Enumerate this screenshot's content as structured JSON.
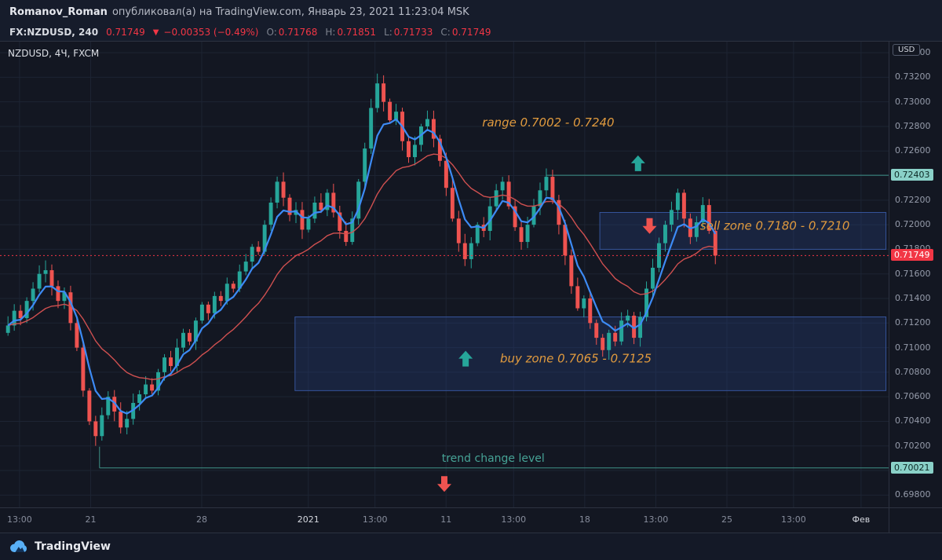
{
  "header": {
    "author": "Romanov_Roman",
    "published": "опубликовал(а) на TradingView.com, Январь 23, 2021 11:23:04 MSK"
  },
  "symbol_bar": {
    "symbol": "FX:NZDUSD, 240",
    "last": "0.71749",
    "direction": "▼",
    "change": "−0.00353 (−0.49%)",
    "open_label": "O:",
    "open": "0.71768",
    "high_label": "H:",
    "high": "0.71851",
    "low_label": "L:",
    "low": "0.71733",
    "close_label": "C:",
    "close": "0.71749"
  },
  "chart": {
    "legend": "NZDUSD, 4Ч, FXCM",
    "currency": "USD"
  },
  "chart_data": {
    "type": "candlestick",
    "title": "NZDUSD 4H FXCM",
    "ylim": [
      0.697,
      0.7349
    ],
    "grid_min": 0.698,
    "grid_max": 0.734,
    "grid_step": 0.002,
    "candles_x_start": 0.009,
    "candles_x_end": 0.805,
    "first_open": 0.7112,
    "closes": [
      0.7118,
      0.713,
      0.7124,
      0.7138,
      0.7148,
      0.716,
      0.7163,
      0.715,
      0.7138,
      0.7145,
      0.712,
      0.71,
      0.7065,
      0.704,
      0.7028,
      0.7045,
      0.706,
      0.7048,
      0.7035,
      0.7042,
      0.7055,
      0.7062,
      0.707,
      0.7065,
      0.708,
      0.7092,
      0.7085,
      0.71,
      0.7112,
      0.7105,
      0.7122,
      0.7135,
      0.7128,
      0.7142,
      0.7138,
      0.7152,
      0.7148,
      0.7162,
      0.717,
      0.7182,
      0.7178,
      0.72,
      0.7218,
      0.7235,
      0.7222,
      0.7208,
      0.7212,
      0.7196,
      0.7205,
      0.7218,
      0.7212,
      0.7226,
      0.721,
      0.7195,
      0.7186,
      0.7205,
      0.7235,
      0.7262,
      0.7295,
      0.7315,
      0.73,
      0.7285,
      0.7292,
      0.7268,
      0.7255,
      0.7265,
      0.728,
      0.7286,
      0.727,
      0.7252,
      0.723,
      0.7205,
      0.7185,
      0.7172,
      0.7185,
      0.72,
      0.7195,
      0.7215,
      0.7228,
      0.7235,
      0.7215,
      0.7198,
      0.7186,
      0.72,
      0.7215,
      0.7228,
      0.7239,
      0.722,
      0.72,
      0.7175,
      0.715,
      0.7132,
      0.714,
      0.712,
      0.7108,
      0.7098,
      0.7112,
      0.7105,
      0.7122,
      0.7126,
      0.7108,
      0.7125,
      0.7148,
      0.7165,
      0.7185,
      0.72,
      0.7212,
      0.7226,
      0.7205,
      0.719,
      0.7202,
      0.7216,
      0.7195,
      0.71749
    ],
    "x_ticks": [
      {
        "label": "13:00",
        "pos": 0.022,
        "major": false
      },
      {
        "label": "21",
        "pos": 0.102,
        "major": false
      },
      {
        "label": "28",
        "pos": 0.227,
        "major": false
      },
      {
        "label": "2021",
        "pos": 0.347,
        "major": true
      },
      {
        "label": "13:00",
        "pos": 0.422,
        "major": false
      },
      {
        "label": "11",
        "pos": 0.502,
        "major": false
      },
      {
        "label": "13:00",
        "pos": 0.578,
        "major": false
      },
      {
        "label": "18",
        "pos": 0.658,
        "major": false
      },
      {
        "label": "13:00",
        "pos": 0.738,
        "major": false
      },
      {
        "label": "25",
        "pos": 0.818,
        "major": false
      },
      {
        "label": "13:00",
        "pos": 0.893,
        "major": false
      },
      {
        "label": "Фев",
        "pos": 0.969,
        "major": true
      }
    ],
    "levels": [
      {
        "name": "range-top-line",
        "value": 0.72403,
        "label": "0.72403",
        "color": "teal",
        "x_from": 0.615,
        "style": "solid",
        "start_drop": false
      },
      {
        "name": "current-price-line",
        "value": 0.71749,
        "label": "0.71749",
        "color": "red",
        "x_from": 0,
        "style": "dotted",
        "start_drop": false
      },
      {
        "name": "trend-change-line",
        "value": 0.70021,
        "label": "0.70021",
        "color": "teal",
        "x_from": 0.112,
        "style": "solid",
        "start_drop": true
      }
    ],
    "zones": [
      {
        "name": "sell",
        "label": "sell zone 0.7180 - 0.7210",
        "price_top": 0.721,
        "price_bottom": 0.718,
        "x_from": 0.675,
        "x_to": 0.997
      },
      {
        "name": "buy",
        "label": "buy zone 0.7065 - 0.7125",
        "price_top": 0.7125,
        "price_bottom": 0.7065,
        "x_from": 0.332,
        "x_to": 0.997
      }
    ],
    "annotations": [
      {
        "id": "range-label",
        "text": "range 0.7002 - 0.7240",
        "x": 0.617,
        "price": 0.728,
        "color": "orange"
      },
      {
        "id": "sell-zone-label",
        "text": "sell zone 0.7180 - 0.7210",
        "x": 0.872,
        "price": 0.7196,
        "color": "orange"
      },
      {
        "id": "buy-zone-label",
        "text": "buy zone 0.7065 - 0.7125",
        "x": 0.648,
        "price": 0.7088,
        "color": "orange"
      },
      {
        "id": "trend-change-label",
        "text": "trend change level",
        "x": 0.555,
        "price": 0.7007,
        "color": "teal"
      }
    ],
    "arrows": [
      {
        "dir": "up",
        "x": 0.718,
        "price": 0.725,
        "color": "teal"
      },
      {
        "dir": "down",
        "x": 0.731,
        "price": 0.7199,
        "color": "red"
      },
      {
        "dir": "up",
        "x": 0.524,
        "price": 0.7091,
        "color": "teal"
      },
      {
        "dir": "down",
        "x": 0.5,
        "price": 0.6989,
        "color": "red"
      }
    ]
  },
  "footer": {
    "brand": "TradingView"
  }
}
